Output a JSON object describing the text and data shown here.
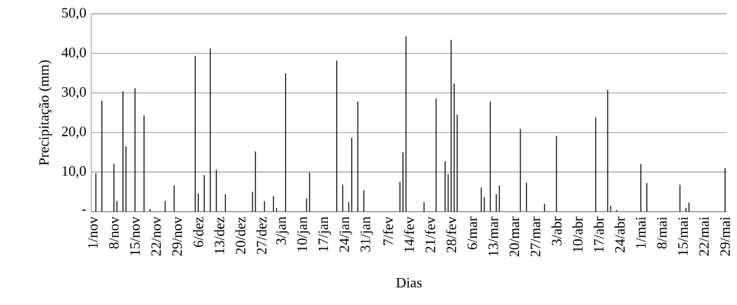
{
  "chart_data": {
    "type": "bar",
    "xlabel": "Dias",
    "ylabel": "Precipitação (mm)",
    "color": "#000000",
    "grid": "y",
    "ylim": [
      0,
      50
    ],
    "yticks": [
      {
        "value": 0,
        "label": "-"
      },
      {
        "value": 10,
        "label": "10,0"
      },
      {
        "value": 20,
        "label": "20,0"
      },
      {
        "value": 30,
        "label": "30,0"
      },
      {
        "value": 40,
        "label": "40,0"
      },
      {
        "value": 50,
        "label": "50,0"
      }
    ],
    "categories": [
      "1/nov",
      null,
      null,
      null,
      null,
      null,
      null,
      "8/nov",
      null,
      null,
      null,
      null,
      null,
      null,
      "15/nov",
      null,
      null,
      null,
      null,
      null,
      null,
      "22/nov",
      null,
      null,
      null,
      null,
      null,
      null,
      "29/nov",
      null,
      null,
      null,
      null,
      null,
      null,
      "6/dez",
      null,
      null,
      null,
      null,
      null,
      null,
      "13/dez",
      null,
      null,
      null,
      null,
      null,
      null,
      "20/dez",
      null,
      null,
      null,
      null,
      null,
      null,
      "27/dez",
      null,
      null,
      null,
      null,
      null,
      null,
      "3/jan",
      null,
      null,
      null,
      null,
      null,
      null,
      "10/jan",
      null,
      null,
      null,
      null,
      null,
      null,
      "17/jan",
      null,
      null,
      null,
      null,
      null,
      null,
      "24/jan",
      null,
      null,
      null,
      null,
      null,
      null,
      "31/jan",
      null,
      null,
      null,
      null,
      null,
      null,
      "7/fev",
      null,
      null,
      null,
      null,
      null,
      null,
      "14/fev",
      null,
      null,
      null,
      null,
      null,
      null,
      "21/fev",
      null,
      null,
      null,
      null,
      null,
      null,
      "28/fev",
      null,
      null,
      null,
      null,
      null,
      null,
      "6/mar",
      null,
      null,
      null,
      null,
      null,
      null,
      "13/mar",
      null,
      null,
      null,
      null,
      null,
      null,
      "20/mar",
      null,
      null,
      null,
      null,
      null,
      null,
      "27/mar",
      null,
      null,
      null,
      null,
      null,
      null,
      "3/abr",
      null,
      null,
      null,
      null,
      null,
      null,
      "10/abr",
      null,
      null,
      null,
      null,
      null,
      null,
      "17/abr",
      null,
      null,
      null,
      null,
      null,
      null,
      "24/abr",
      null,
      null,
      null,
      null,
      null,
      null,
      "1/mai",
      null,
      null,
      null,
      null,
      null,
      null,
      "8/mai",
      null,
      null,
      null,
      null,
      null,
      null,
      "15/mai",
      null,
      null,
      null,
      null,
      null,
      null,
      "22/mai",
      null,
      null,
      null,
      null,
      null,
      null,
      "29/mai"
    ],
    "values": [
      0,
      9.7,
      0,
      28.1,
      0,
      0,
      0,
      12.1,
      2.7,
      0,
      30.4,
      16.5,
      0,
      0,
      31.2,
      0,
      0,
      24.3,
      0,
      0.7,
      0,
      0,
      0,
      0,
      2.7,
      0,
      0,
      6.7,
      0,
      0,
      0,
      0,
      0,
      0,
      39.4,
      4.6,
      0,
      9.2,
      0,
      41.2,
      0,
      10.6,
      0,
      0,
      4.4,
      0,
      0,
      0,
      0,
      0,
      0,
      0,
      0,
      5.0,
      15.2,
      0,
      0,
      2.6,
      0,
      0,
      3.9,
      0.9,
      0,
      0,
      35.0,
      0,
      0,
      0,
      0,
      0,
      0,
      3.3,
      9.9,
      0,
      0,
      0,
      0,
      0,
      0,
      0,
      0,
      38.2,
      0,
      6.8,
      0,
      2.4,
      18.7,
      0,
      27.8,
      0,
      5.4,
      0,
      0,
      0,
      0,
      0,
      0,
      0,
      0,
      0,
      0,
      0,
      7.5,
      15.0,
      44.3,
      0,
      0,
      0,
      0,
      0,
      2.4,
      0,
      0,
      0,
      28.6,
      0,
      0,
      12.7,
      9.5,
      43.4,
      32.4,
      24.5,
      0,
      0,
      0,
      0,
      0,
      0,
      0,
      6.1,
      3.7,
      0,
      27.8,
      0,
      4.4,
      6.6,
      0,
      0,
      0,
      0,
      0,
      0,
      20.9,
      0,
      7.3,
      0,
      0,
      0,
      0,
      0,
      2.0,
      0,
      0,
      0,
      19.1,
      0,
      0,
      0,
      0,
      0,
      0,
      0,
      0,
      0,
      0,
      0,
      0,
      23.8,
      0,
      0,
      0,
      30.8,
      1.5,
      0,
      0.4,
      0,
      0,
      0,
      0,
      0,
      0,
      0,
      12.0,
      0,
      7.2,
      0,
      0,
      0,
      0,
      0,
      0,
      0,
      0,
      0,
      0,
      6.8,
      0,
      1.0,
      2.3,
      0,
      0,
      0,
      0,
      0,
      0,
      0,
      0,
      0,
      0,
      0,
      11.0
    ]
  }
}
